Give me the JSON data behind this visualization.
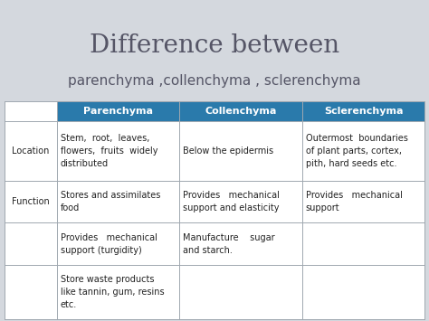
{
  "title_line1": "Difference between",
  "title_line2": "parenchyma ,collenchyma , sclerenchyma",
  "title_line1_fontsize": 20,
  "title_line2_fontsize": 11,
  "title_color": "#555566",
  "subtitle_color": "#555566",
  "background_color": "#d4d8de",
  "table_bg": "#ffffff",
  "header_bg": "#2a7aab",
  "header_text_color": "#ffffff",
  "header_fontsize": 8,
  "cell_fontsize": 7,
  "label_fontsize": 7,
  "cell_text_color": "#222222",
  "row_label_color": "#222222",
  "grid_color": "#a0a8b0",
  "col_headers": [
    "",
    "Parenchyma",
    "Collenchyma",
    "Sclerenchyma"
  ],
  "rows": [
    {
      "label": "Location",
      "parenchyma": "Stem,  root,  leaves,\nflowers,  fruits  widely\ndistributed",
      "collenchyma": "Below the epidermis",
      "sclerenchyma": "Outermost  boundaries\nof plant parts, cortex,\npith, hard seeds etc."
    },
    {
      "label": "Function",
      "parenchyma": "Stores and assimilates\nfood",
      "collenchyma": "Provides   mechanical\nsupport and elasticity",
      "sclerenchyma": "Provides   mechanical\nsupport"
    },
    {
      "label": "",
      "parenchyma": "Provides   mechanical\nsupport (turgidity)",
      "collenchyma": "Manufacture    sugar\nand starch.",
      "sclerenchyma": ""
    },
    {
      "label": "",
      "parenchyma": "Store waste products\nlike tannin, gum, resins\netc.",
      "collenchyma": "",
      "sclerenchyma": ""
    }
  ],
  "figsize": [
    4.74,
    3.55
  ],
  "dpi": 100
}
